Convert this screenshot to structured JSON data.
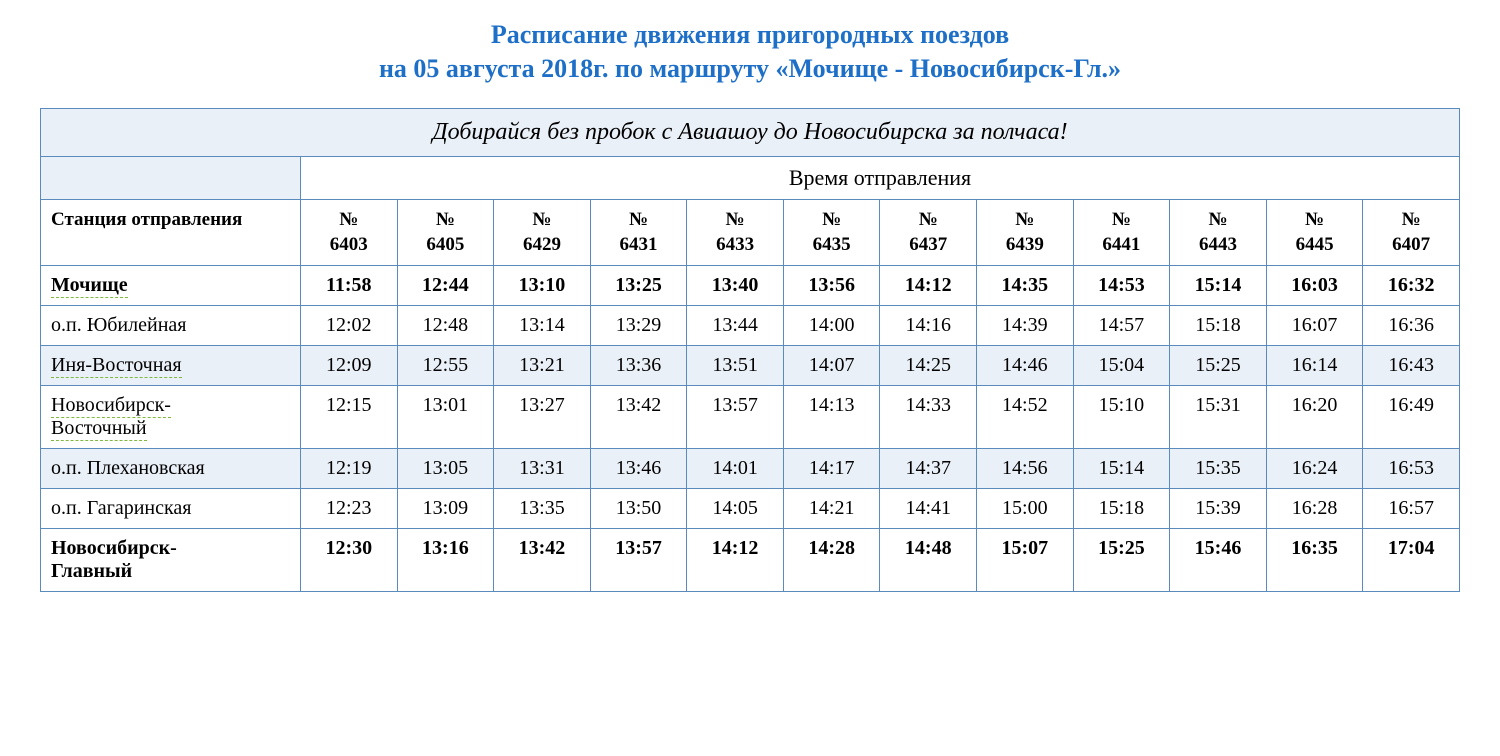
{
  "title_line1": "Расписание движения пригородных поездов",
  "title_line2": "на 05 августа 2018г. по маршруту «Мочище - Новосибирск-Гл.»",
  "banner": "Добирайся без пробок с Авиашоу до Новосибирска за полчаса!",
  "departure_header": "Время отправления",
  "station_header": "Станция отправления",
  "train_prefix": "№",
  "trains": [
    "6403",
    "6405",
    "6429",
    "6431",
    "6433",
    "6435",
    "6437",
    "6439",
    "6441",
    "6443",
    "6445",
    "6407"
  ],
  "stations": [
    {
      "name": "Мочище",
      "dotted": true,
      "bold": true,
      "alt": false,
      "times": [
        "11:58",
        "12:44",
        "13:10",
        "13:25",
        "13:40",
        "13:56",
        "14:12",
        "14:35",
        "14:53",
        "15:14",
        "16:03",
        "16:32"
      ]
    },
    {
      "name": "о.п. Юбилейная",
      "dotted": false,
      "bold": false,
      "alt": false,
      "times": [
        "12:02",
        "12:48",
        "13:14",
        "13:29",
        "13:44",
        "14:00",
        "14:16",
        "14:39",
        "14:57",
        "15:18",
        "16:07",
        "16:36"
      ]
    },
    {
      "name": "Иня-Восточная",
      "dotted": true,
      "bold": false,
      "alt": true,
      "times": [
        "12:09",
        "12:55",
        "13:21",
        "13:36",
        "13:51",
        "14:07",
        "14:25",
        "14:46",
        "15:04",
        "15:25",
        "16:14",
        "16:43"
      ]
    },
    {
      "name": "Новосибирск-Восточный",
      "dotted": true,
      "bold": false,
      "alt": false,
      "times": [
        "12:15",
        "13:01",
        "13:27",
        "13:42",
        "13:57",
        "14:13",
        "14:33",
        "14:52",
        "15:10",
        "15:31",
        "16:20",
        "16:49"
      ]
    },
    {
      "name": "о.п. Плехановская",
      "dotted": false,
      "bold": false,
      "alt": true,
      "times": [
        "12:19",
        "13:05",
        "13:31",
        "13:46",
        "14:01",
        "14:17",
        "14:37",
        "14:56",
        "15:14",
        "15:35",
        "16:24",
        "16:53"
      ]
    },
    {
      "name": "о.п. Гагаринская",
      "dotted": false,
      "bold": false,
      "alt": false,
      "times": [
        "12:23",
        "13:09",
        "13:35",
        "13:50",
        "14:05",
        "14:21",
        "14:41",
        "15:00",
        "15:18",
        "15:39",
        "16:28",
        "16:57"
      ]
    },
    {
      "name": "Новосибирск-Главный",
      "dotted": false,
      "bold": true,
      "alt": false,
      "times": [
        "12:30",
        "13:16",
        "13:42",
        "13:57",
        "14:12",
        "14:28",
        "14:48",
        "15:07",
        "15:25",
        "15:46",
        "16:35",
        "17:04"
      ]
    }
  ],
  "colors": {
    "accent": "#1e6fc7",
    "border": "#5b8bbd",
    "row_alt_bg": "#eaf0f8",
    "dotted_underline": "#7eb93e"
  }
}
